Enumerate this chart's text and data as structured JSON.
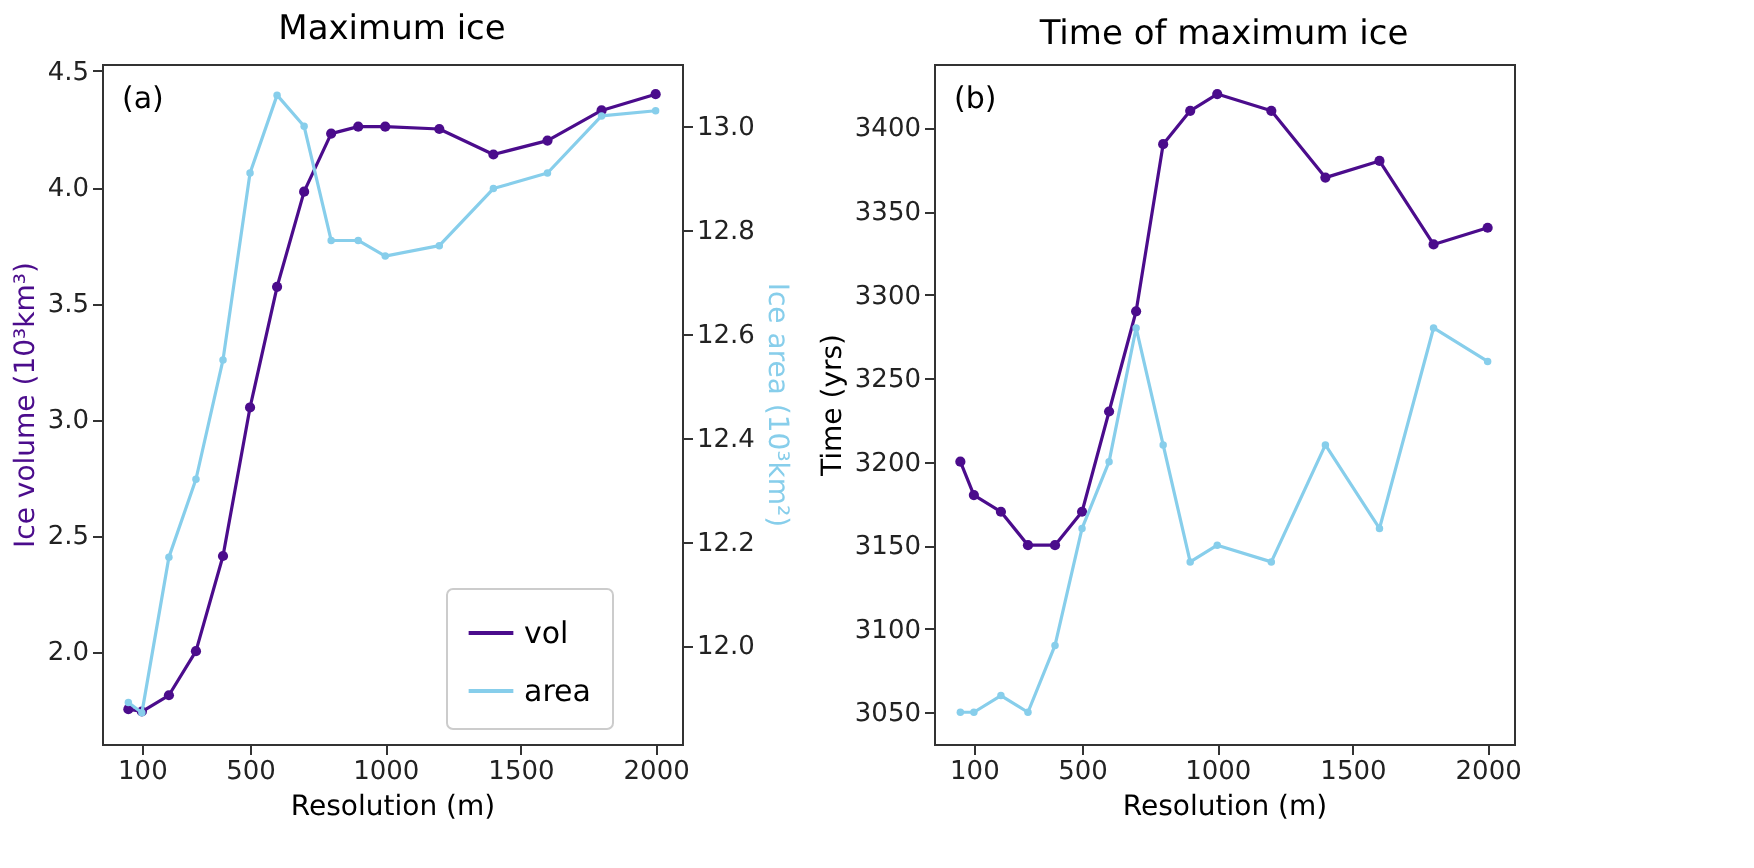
{
  "chart_data": [
    {
      "type": "line",
      "title": "Maximum ice",
      "xlabel": "Resolution (m)",
      "ylabel": "Ice volume (10³km³)",
      "y2label": "Ice area (10³km²)",
      "annotations": [
        "(a)"
      ],
      "x": [
        50,
        100,
        200,
        300,
        400,
        500,
        600,
        700,
        800,
        900,
        1000,
        1200,
        1400,
        1600,
        1800,
        2000
      ],
      "series": [
        {
          "name": "vol",
          "color": "#4b0c8c",
          "values": [
            1.75,
            1.74,
            1.81,
            2.0,
            2.41,
            3.05,
            3.57,
            3.98,
            4.23,
            4.26,
            4.26,
            4.25,
            4.14,
            4.2,
            4.33,
            4.4
          ]
        },
        {
          "name": "area",
          "color": "#87ceeb",
          "axis": "y2",
          "values": [
            11.89,
            11.87,
            12.17,
            12.32,
            12.55,
            12.91,
            13.06,
            13.0,
            12.78,
            12.78,
            12.75,
            12.77,
            12.88,
            12.91,
            13.02,
            13.03
          ]
        }
      ],
      "xlim": [
        -47.5,
        2097.5
      ],
      "xticks": [
        100,
        500,
        1000,
        1500,
        2000
      ],
      "ylim": [
        1.6,
        4.53
      ],
      "yticks": [
        {
          "value": 2,
          "label": "2.0"
        },
        2.5,
        {
          "value": 3,
          "label": "3.0"
        },
        3.5,
        {
          "value": 4,
          "label": "4.0"
        },
        4.5
      ],
      "y2lim": [
        11.81,
        13.12
      ],
      "y2ticks": [
        {
          "value": 12,
          "label": "12.0"
        },
        12.2,
        12.4,
        12.6,
        12.8,
        {
          "value": 13,
          "label": "13.0"
        }
      ],
      "legend": "bottom right",
      "marker": "circle",
      "grid": false
    },
    {
      "type": "line",
      "title": "Time of maximum ice",
      "xlabel": "Resolution (m)",
      "ylabel": "Time (yrs)",
      "annotations": [
        "(b)"
      ],
      "x": [
        50,
        100,
        200,
        300,
        400,
        500,
        600,
        700,
        800,
        900,
        1000,
        1200,
        1400,
        1600,
        1800,
        2000
      ],
      "series": [
        {
          "color": "#4b0c8c",
          "values": [
            3200,
            3180,
            3170,
            3150,
            3150,
            3170,
            3230,
            3290,
            3390,
            3410,
            3420,
            3410,
            3370,
            3380,
            3330,
            3340
          ]
        },
        {
          "color": "#87ceeb",
          "values": [
            3050,
            3050,
            3060,
            3050,
            3090,
            3160,
            3200,
            3280,
            3210,
            3140,
            3150,
            3140,
            3210,
            3160,
            3280,
            3260
          ]
        }
      ],
      "xlim": [
        -47.5,
        2097.5
      ],
      "xticks": [
        100,
        500,
        1000,
        1500,
        2000
      ],
      "ylim": [
        3031,
        3438
      ],
      "yticks": [
        3050,
        3100,
        3150,
        3200,
        3250,
        3300,
        3350,
        3400
      ],
      "marker": "circle",
      "grid": false
    }
  ]
}
